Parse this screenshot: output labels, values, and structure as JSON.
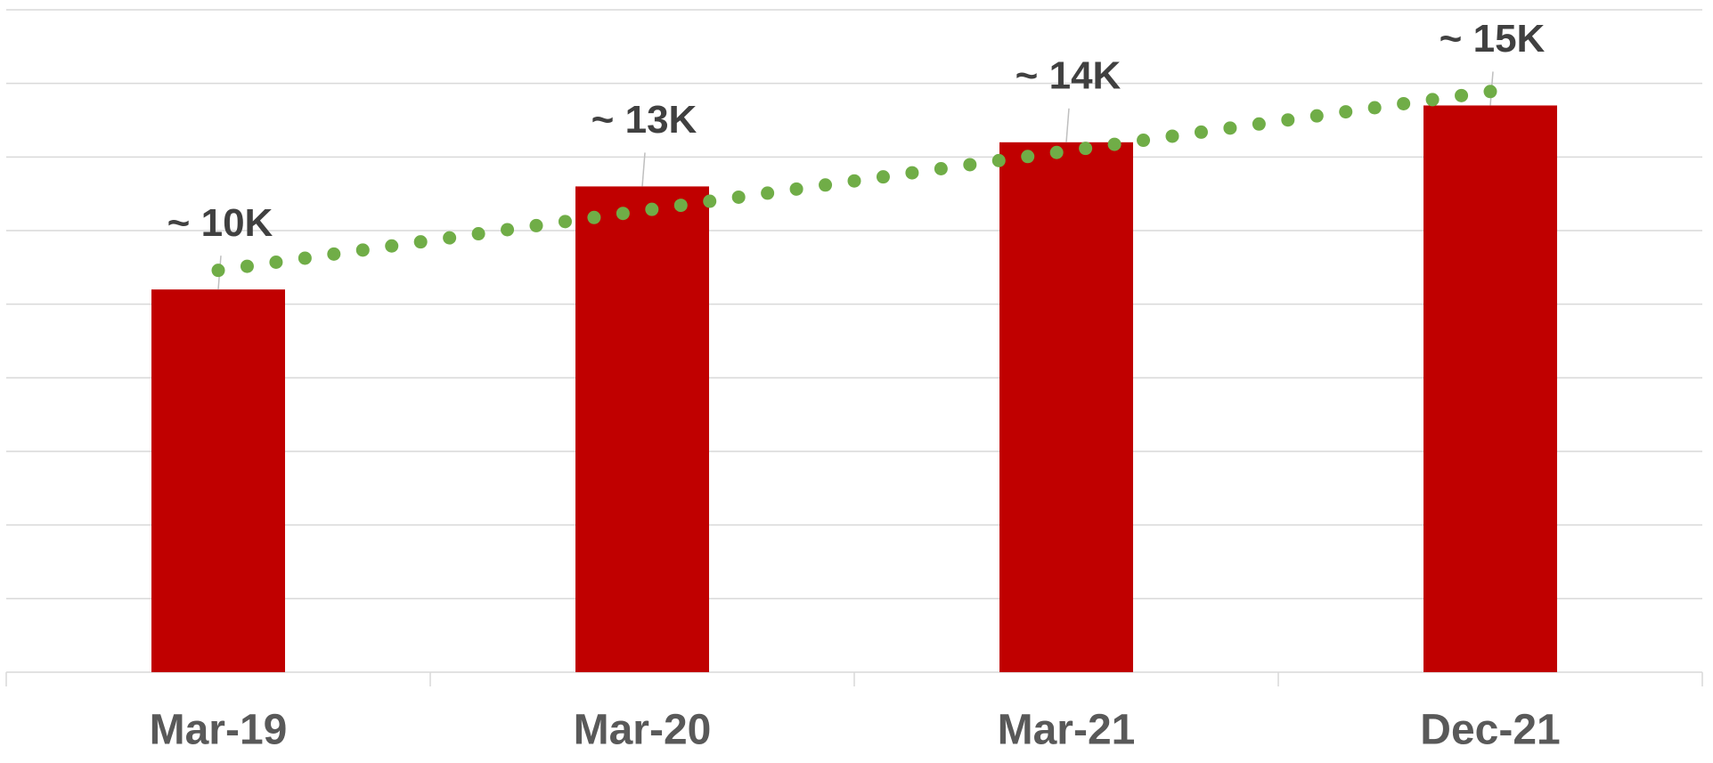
{
  "chart_data": {
    "type": "bar",
    "categories": [
      "Mar-19",
      "Mar-20",
      "Mar-21",
      "Dec-21"
    ],
    "values": [
      10400,
      13200,
      14400,
      15400
    ],
    "value_labels": [
      "~ 10K",
      "~ 13K",
      "~ 14K",
      "~ 15K"
    ],
    "color": "#c00000",
    "ylim": [
      0,
      18000
    ],
    "yticks": [
      0,
      2000,
      4000,
      6000,
      8000,
      10000,
      12000,
      14000,
      16000,
      18000
    ],
    "grid": true,
    "trendline": {
      "type": "linear",
      "color": "#70ad47",
      "style": "dotted"
    }
  }
}
